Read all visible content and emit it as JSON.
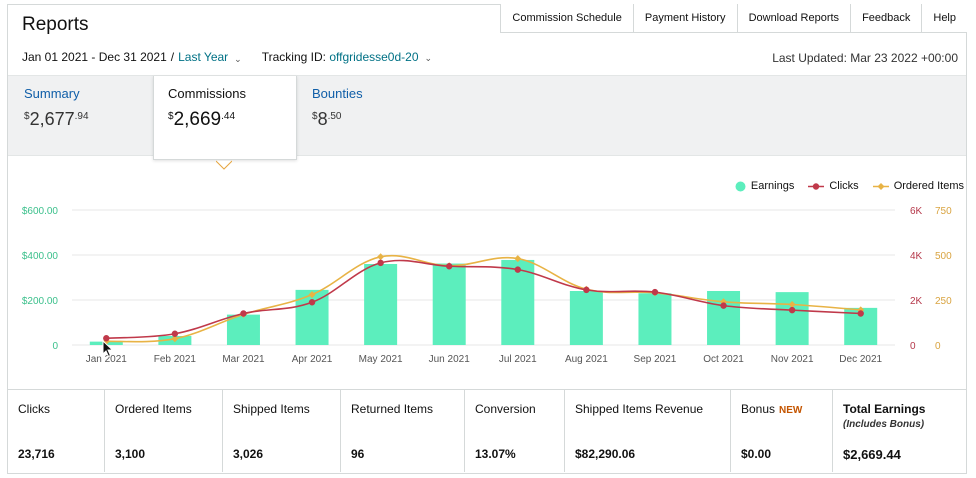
{
  "header": {
    "title": "Reports",
    "nav": [
      "Commission Schedule",
      "Payment History",
      "Download Reports",
      "Feedback",
      "Help"
    ]
  },
  "filters": {
    "date_range": "Jan 01 2021 - Dec 31 2021",
    "separator": "/",
    "preset": "Last Year",
    "tracking_label": "Tracking ID:",
    "tracking_id": "offgridesse0d-20",
    "last_updated": "Last Updated: Mar 23 2022 +00:00"
  },
  "tabs": [
    {
      "label": "Summary",
      "currency": "$",
      "whole": "2,677",
      "cents": ".94",
      "selected": false
    },
    {
      "label": "Commissions",
      "currency": "$",
      "whole": "2,669",
      "cents": ".44",
      "selected": true
    },
    {
      "label": "Bounties",
      "currency": "$",
      "whole": "8",
      "cents": ".50",
      "selected": false
    }
  ],
  "legend": {
    "earnings": "Earnings",
    "clicks": "Clicks",
    "ordered_items": "Ordered Items"
  },
  "colors": {
    "earnings": "#5ceebd",
    "clicks": "#c0394a",
    "ordered_items": "#e8b345",
    "earnings_axis": "#3cc08c",
    "clicks_axis": "#b5384a",
    "ordered_axis": "#d9a441",
    "link": "#007185",
    "tab_link": "#0f5ea8",
    "new_badge": "#c45500"
  },
  "chart_data": {
    "type": "bar",
    "categories": [
      "Jan 2021",
      "Feb 2021",
      "Mar 2021",
      "Apr 2021",
      "May 2021",
      "Jun 2021",
      "Jul 2021",
      "Aug 2021",
      "Sep 2021",
      "Oct 2021",
      "Nov 2021",
      "Dec 2021"
    ],
    "series": [
      {
        "name": "Earnings",
        "type": "bar",
        "axis": "left",
        "values": [
          15,
          40,
          135,
          245,
          360,
          362,
          378,
          240,
          230,
          240,
          235,
          165
        ]
      },
      {
        "name": "Clicks",
        "type": "line",
        "axis": "right-1",
        "values": [
          300,
          500,
          1400,
          1900,
          3650,
          3500,
          3350,
          2450,
          2350,
          1750,
          1550,
          1400
        ]
      },
      {
        "name": "Ordered Items",
        "type": "line",
        "axis": "right-2",
        "values": [
          20,
          35,
          170,
          280,
          490,
          440,
          480,
          310,
          290,
          240,
          225,
          195
        ]
      }
    ],
    "y_left": {
      "ticks": [
        "$600.00",
        "$400.00",
        "$200.00",
        "0"
      ],
      "range": [
        0,
        600
      ]
    },
    "y_right_1": {
      "ticks": [
        "6K",
        "4K",
        "2K",
        "0"
      ],
      "range": [
        0,
        6000
      ]
    },
    "y_right_2": {
      "ticks": [
        "750",
        "500",
        "250",
        "0"
      ],
      "range": [
        0,
        750
      ]
    },
    "grid": true,
    "legend_position": "top-right"
  },
  "stats": [
    {
      "label": "Clicks",
      "value": "23,716"
    },
    {
      "label": "Ordered Items",
      "value": "3,100"
    },
    {
      "label": "Shipped Items",
      "value": "3,026"
    },
    {
      "label": "Returned Items",
      "value": "96"
    },
    {
      "label": "Conversion",
      "value": "13.07%"
    },
    {
      "label": "Shipped Items Revenue",
      "value": "$82,290.06"
    },
    {
      "label": "Bonus",
      "badge": "NEW",
      "value": "$0.00"
    },
    {
      "label": "Total Earnings",
      "sub": "(Includes Bonus)",
      "value": "$2,669.44"
    }
  ]
}
